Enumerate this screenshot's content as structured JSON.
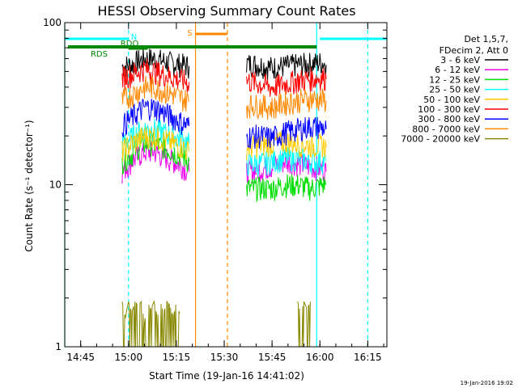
{
  "chart_data": {
    "type": "line",
    "title": "HESSI Observing Summary Count Rates",
    "xlabel": "Start Time (19-Jan-16 14:41:02)",
    "ylabel": "Count Rate (s⁻¹ detector⁻¹)",
    "y_scale": "log",
    "ylim": [
      1,
      100
    ],
    "xlim": [
      "14:40",
      "16:21"
    ],
    "x_ticks": [
      "14:45",
      "15:00",
      "15:15",
      "15:30",
      "15:45",
      "16:00",
      "16:15"
    ],
    "y_ticks": [
      "1",
      "10",
      "100"
    ],
    "grid": false,
    "legend_position": "right",
    "legend_header": [
      "Det 1,5,7,",
      "FDecim 2, Att 0"
    ],
    "footer": "19-Jan-2016 19:02",
    "colors": {
      "3 - 6 keV": "#000000",
      "6 - 12 keV": "#ee00ee",
      "12 - 25 keV": "#00dd00",
      "25 - 50 keV": "#00ffff",
      "50 - 100 keV": "#ffcc00",
      "100 - 300 keV": "#ff0000",
      "300 - 800 keV": "#0000ff",
      "800 - 7000 keV": "#ff8800",
      "7000 - 20000 keV": "#888800"
    },
    "annotations": {
      "flags": [
        {
          "label": "N",
          "color": "#00ffff",
          "intervals": [
            [
              "14:40",
              "15:00"
            ],
            [
              "16:00",
              "16:21"
            ]
          ]
        },
        {
          "label": "RDO",
          "color": "#008800",
          "intervals": [
            [
              "15:00",
              "15:06"
            ]
          ]
        },
        {
          "label": "RDS",
          "color": "#008800",
          "intervals": [
            [
              "14:41",
              "15:59"
            ]
          ]
        },
        {
          "label": "S",
          "color": "#ff8800",
          "intervals": [
            [
              "15:21",
              "15:31"
            ]
          ]
        }
      ],
      "vertical_lines": [
        {
          "time": "14:40",
          "color": "#00ffff",
          "style": "solid"
        },
        {
          "time": "15:00",
          "color": "#00ffff",
          "style": "dashed"
        },
        {
          "time": "15:21",
          "color": "#ff8800",
          "style": "solid"
        },
        {
          "time": "15:31",
          "color": "#ff8800",
          "style": "dashed"
        },
        {
          "time": "15:59",
          "color": "#00ffff",
          "style": "solid"
        },
        {
          "time": "16:15",
          "color": "#00ffff",
          "style": "dashed"
        }
      ]
    },
    "series": [
      {
        "name": "3 - 6 keV",
        "segments": [
          {
            "x": [
              "14:58",
              "15:01",
              "15:03",
              "15:05",
              "15:08",
              "15:11",
              "15:14",
              "15:17",
              "15:19"
            ],
            "y": [
              54,
              55,
              58,
              60,
              60,
              58,
              56,
              55,
              54
            ]
          },
          {
            "x": [
              "15:37",
              "15:41",
              "15:45",
              "15:49",
              "15:53",
              "15:57",
              "16:01",
              "16:02"
            ],
            "y": [
              56,
              55,
              53,
              54,
              55,
              56,
              57,
              55
            ]
          }
        ]
      },
      {
        "name": "6 - 12 keV",
        "segments": [
          {
            "x": [
              "14:58",
              "15:01",
              "15:03",
              "15:05",
              "15:08",
              "15:11",
              "15:14",
              "15:17",
              "15:19"
            ],
            "y": [
              12,
              14,
              15,
              16,
              16,
              15,
              14,
              13,
              12
            ]
          },
          {
            "x": [
              "15:37",
              "15:41",
              "15:45",
              "15:49",
              "15:53",
              "15:57",
              "16:01",
              "16:02"
            ],
            "y": [
              12,
              12.5,
              13,
              14,
              13.5,
              13,
              12.5,
              12
            ]
          }
        ]
      },
      {
        "name": "12 - 25 keV",
        "segments": [
          {
            "x": [
              "14:58",
              "15:01",
              "15:03",
              "15:05",
              "15:08",
              "15:11",
              "15:14",
              "15:17",
              "15:19"
            ],
            "y": [
              14,
              15.5,
              17,
              18,
              18,
              17,
              16,
              15,
              14
            ]
          },
          {
            "x": [
              "15:37",
              "15:41",
              "15:45",
              "15:49",
              "15:53",
              "15:57",
              "16:01",
              "16:02"
            ],
            "y": [
              9.5,
              9.5,
              9.5,
              10,
              10,
              9.5,
              10,
              10
            ]
          }
        ]
      },
      {
        "name": "25 - 50 keV",
        "segments": [
          {
            "x": [
              "14:58",
              "15:01",
              "15:03",
              "15:05",
              "15:08",
              "15:11",
              "15:14",
              "15:17",
              "15:19"
            ],
            "y": [
              18,
              19.5,
              21,
              22,
              22,
              21,
              20,
              19,
              18
            ]
          },
          {
            "x": [
              "15:37",
              "15:41",
              "15:45",
              "15:49",
              "15:53",
              "15:57",
              "16:01",
              "16:02"
            ],
            "y": [
              13.5,
              13.5,
              14,
              14.5,
              14.5,
              14,
              14,
              14
            ]
          }
        ]
      },
      {
        "name": "50 - 100 keV",
        "segments": [
          {
            "x": [
              "14:58",
              "15:01",
              "15:03",
              "15:05",
              "15:08",
              "15:11",
              "15:14",
              "15:17",
              "15:19"
            ],
            "y": [
              16,
              18,
              19,
              20,
              20,
              19,
              18,
              17,
              16
            ]
          },
          {
            "x": [
              "15:37",
              "15:41",
              "15:45",
              "15:49",
              "15:53",
              "15:57",
              "16:01",
              "16:02"
            ],
            "y": [
              17,
              17.5,
              18,
              18.5,
              18,
              17.5,
              17.5,
              17
            ]
          }
        ]
      },
      {
        "name": "100 - 300 keV",
        "segments": [
          {
            "x": [
              "14:58",
              "15:01",
              "15:03",
              "15:05",
              "15:08",
              "15:11",
              "15:14",
              "15:17",
              "15:19"
            ],
            "y": [
              46,
              48,
              50,
              52,
              50,
              48,
              46,
              44,
              43
            ]
          },
          {
            "x": [
              "15:37",
              "15:41",
              "15:45",
              "15:49",
              "15:53",
              "15:57",
              "16:01",
              "16:02"
            ],
            "y": [
              44,
              42,
              40,
              42,
              44,
              45,
              46,
              45
            ]
          }
        ]
      },
      {
        "name": "300 - 800 keV",
        "segments": [
          {
            "x": [
              "14:58",
              "15:01",
              "15:03",
              "15:05",
              "15:08",
              "15:11",
              "15:14",
              "15:17",
              "15:19"
            ],
            "y": [
              23,
              26,
              28,
              30,
              30,
              28,
              26,
              24,
              23
            ]
          },
          {
            "x": [
              "15:37",
              "15:41",
              "15:45",
              "15:49",
              "15:53",
              "15:57",
              "16:01",
              "16:02"
            ],
            "y": [
              20,
              20,
              19.5,
              21,
              22,
              23,
              22.5,
              22
            ]
          }
        ]
      },
      {
        "name": "800 - 7000 keV",
        "segments": [
          {
            "x": [
              "14:58",
              "15:01",
              "15:03",
              "15:05",
              "15:08",
              "15:11",
              "15:14",
              "15:17",
              "15:19"
            ],
            "y": [
              33,
              36,
              38,
              40,
              40,
              38,
              36,
              34,
              33
            ]
          },
          {
            "x": [
              "15:37",
              "15:41",
              "15:45",
              "15:49",
              "15:53",
              "15:57",
              "16:01",
              "16:02"
            ],
            "y": [
              31,
              31,
              30,
              32,
              33,
              34,
              33.5,
              33
            ]
          }
        ]
      },
      {
        "name": "7000 - 20000 keV",
        "segments": [
          {
            "x": [
              "14:58",
              "14:59",
              "15:00",
              "15:01",
              "15:02",
              "15:03",
              "15:04",
              "15:05",
              "15:06",
              "15:07",
              "15:08",
              "15:09",
              "15:10",
              "15:11",
              "15:12",
              "15:13",
              "15:14",
              "15:15",
              "15:16"
            ],
            "y": [
              1.9,
              1.5,
              1.9,
              1.6,
              1.9,
              1.8,
              1.9,
              1.4,
              1.9,
              1.7,
              1.9,
              1.5,
              1.9,
              1.6,
              1.9,
              1.8,
              1.5,
              1.9,
              1.6
            ]
          },
          {
            "x": [
              "15:53",
              "15:54",
              "15:55",
              "15:56",
              "15:57"
            ],
            "y": [
              1.9,
              1.6,
              1.9,
              1.7,
              1.9
            ]
          }
        ]
      }
    ]
  }
}
